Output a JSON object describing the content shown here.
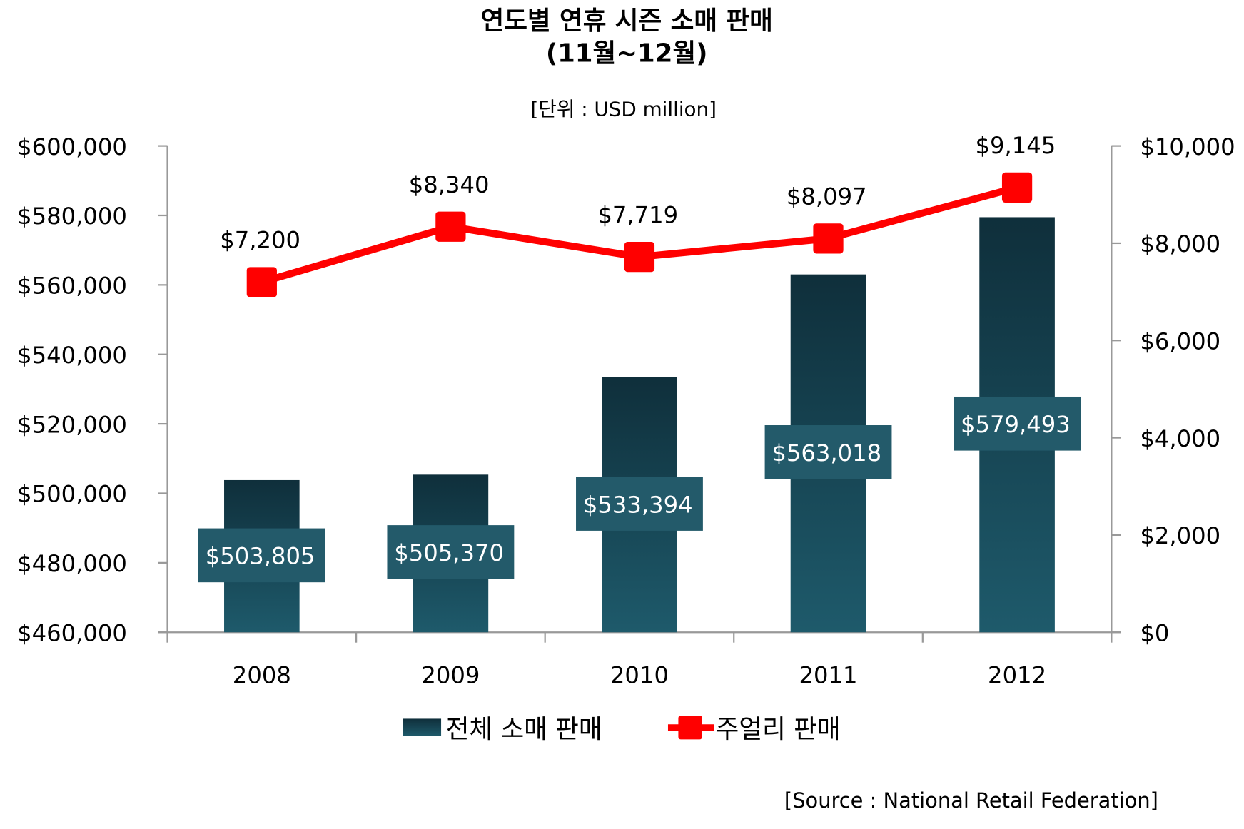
{
  "chart_data": {
    "type": "bar+line",
    "title": "연도별 연휴 시즌 소매 판매",
    "subtitle": "(11월~12월)",
    "unit_note": "[단위 : USD million]",
    "source": "[Source : National Retail Federation]",
    "categories": [
      "2008",
      "2009",
      "2010",
      "2011",
      "2012"
    ],
    "series": [
      {
        "name": "전체 소매 판매",
        "type": "bar",
        "axis": "left",
        "values": [
          503805,
          505370,
          533394,
          563018,
          579493
        ],
        "labels": [
          "$503,805",
          "$505,370",
          "$533,394",
          "$563,018",
          "$579,493"
        ],
        "color": "#1b5465"
      },
      {
        "name": "주얼리 판매",
        "type": "line",
        "axis": "right",
        "values": [
          7200,
          8340,
          7719,
          8097,
          9145
        ],
        "labels": [
          "$7,200",
          "$8,340",
          "$7,719",
          "$8,097",
          "$9,145"
        ],
        "color": "#ff0000"
      }
    ],
    "left_axis": {
      "ylim": [
        460000,
        600000
      ],
      "ticks": [
        "$460,000",
        "$480,000",
        "$500,000",
        "$520,000",
        "$540,000",
        "$560,000",
        "$580,000",
        "$600,000"
      ]
    },
    "right_axis": {
      "ylim": [
        0,
        10000
      ],
      "ticks": [
        "$0",
        "$2,000",
        "$4,000",
        "$6,000",
        "$8,000",
        "$10,000"
      ]
    },
    "grid": false,
    "legend": "bottom",
    "label_box_color": "#235a6a"
  }
}
